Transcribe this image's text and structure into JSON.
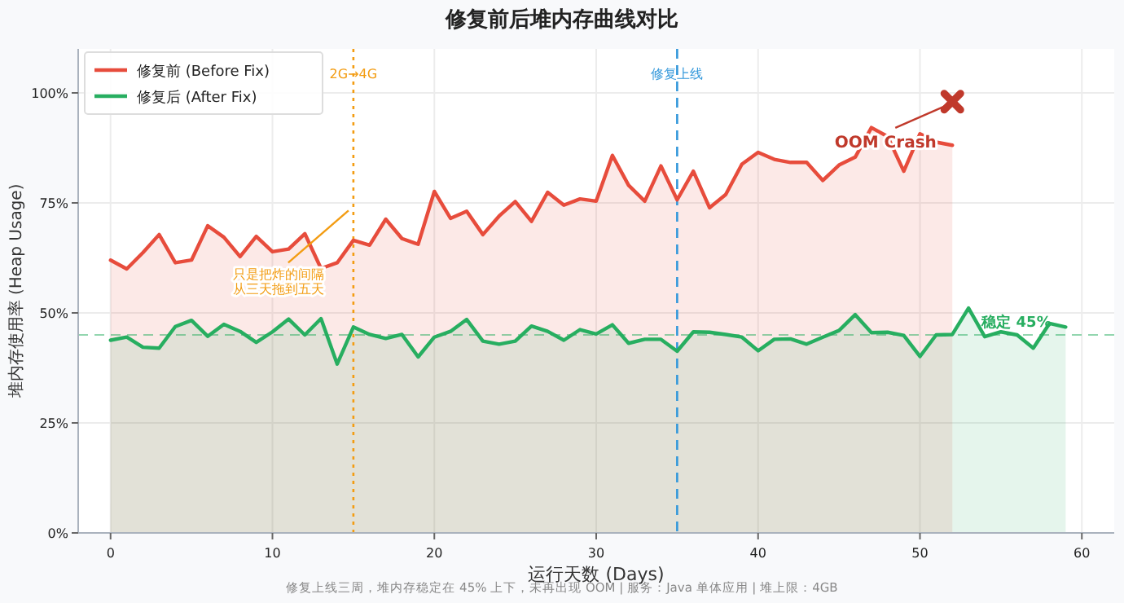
{
  "chart_data": {
    "type": "area",
    "title": "修复前后堆内存曲线对比",
    "xlabel": "运行天数 (Days)",
    "ylabel": "堆内存使用率 (Heap Usage)",
    "xlim": [
      -2,
      62
    ],
    "ylim": [
      0,
      110
    ],
    "xticks": [
      0,
      10,
      20,
      30,
      40,
      50,
      60
    ],
    "yticks": [
      {
        "value": 0,
        "label": "0%"
      },
      {
        "value": 25,
        "label": "25%"
      },
      {
        "value": 50,
        "label": "50%"
      },
      {
        "value": 75,
        "label": "75%"
      },
      {
        "value": 100,
        "label": "100%"
      }
    ],
    "grid": true,
    "legend": "top left",
    "line_style": "solid",
    "series": [
      {
        "name": "修复前 (Before Fix)",
        "color": "#e74c3c",
        "x": [
          0,
          1,
          2,
          3,
          4,
          5,
          6,
          7,
          8,
          9,
          10,
          11,
          12,
          13,
          14,
          15,
          16,
          17,
          18,
          19,
          20,
          21,
          22,
          23,
          24,
          25,
          26,
          27,
          28,
          29,
          30,
          31,
          32,
          33,
          34,
          35,
          36,
          37,
          38,
          39,
          40,
          41,
          42,
          43,
          44,
          45,
          46,
          47,
          48,
          49,
          50,
          51,
          52
        ],
        "values": [
          62,
          60,
          63.7,
          67.8,
          61.4,
          62,
          69.8,
          67.2,
          62.8,
          67.4,
          63.9,
          64.5,
          68,
          60.1,
          61.4,
          66.5,
          65.4,
          71.3,
          66.9,
          65.6,
          77.6,
          71.5,
          73.1,
          67.8,
          72,
          75.3,
          70.8,
          77.4,
          74.5,
          75.9,
          75.4,
          85.8,
          79,
          75.4,
          83.4,
          75.7,
          82.2,
          73.9,
          76.9,
          83.8,
          86.5,
          84.9,
          84.2,
          84.2,
          80.1,
          83.6,
          85.4,
          92.1,
          90.1,
          82.2,
          90.7,
          88.8,
          88.1
        ]
      },
      {
        "name": "修复后 (After Fix)",
        "color": "#27ae60",
        "x": [
          0,
          1,
          2,
          3,
          4,
          5,
          6,
          7,
          8,
          9,
          10,
          11,
          12,
          13,
          14,
          15,
          16,
          17,
          18,
          19,
          20,
          21,
          22,
          23,
          24,
          25,
          26,
          27,
          28,
          29,
          30,
          31,
          32,
          33,
          34,
          35,
          36,
          37,
          38,
          39,
          40,
          41,
          42,
          43,
          44,
          45,
          46,
          47,
          48,
          49,
          50,
          51,
          52,
          53,
          54,
          55,
          56,
          57,
          58,
          59
        ],
        "values": [
          43.8,
          44.5,
          42.2,
          42,
          46.9,
          48.3,
          44.7,
          47.4,
          45.8,
          43.3,
          45.7,
          48.6,
          45,
          48.7,
          38.4,
          46.8,
          45.1,
          44.2,
          45.1,
          40,
          44.5,
          45.8,
          48.5,
          43.6,
          42.9,
          43.6,
          47,
          45.8,
          43.8,
          46.2,
          45.2,
          47.3,
          43.1,
          44,
          44,
          41.3,
          45.7,
          45.6,
          45.1,
          44.5,
          41.4,
          44,
          44.1,
          42.9,
          44.5,
          46,
          49.6,
          45.5,
          45.6,
          44.9,
          40.1,
          45,
          45.1,
          51.1,
          44.6,
          45.7,
          45,
          42,
          47.6,
          46.8
        ]
      },
      {
        "type": "scatter",
        "marker": "cross",
        "color": "#c0392b",
        "x": [
          52
        ],
        "values": [
          98
        ]
      }
    ],
    "ref_lines": [
      {
        "axis": "x",
        "value": 15,
        "label": "2G→4G",
        "color": "#f39c12",
        "line_style": "dotted"
      },
      {
        "axis": "x",
        "value": 35,
        "label": "修复上线",
        "color": "#3498db",
        "line_style": "dashed"
      },
      {
        "axis": "y",
        "value": 45,
        "label": "稳定 45%",
        "color": "#27ae60",
        "line_style": "dashed"
      }
    ],
    "annotations": [
      {
        "text": "OOM Crash",
        "x": 52,
        "y": 98
      },
      {
        "text": "只是把炸的间隔从三天拖到五天",
        "x": 15,
        "y": 74
      },
      "修复上线三周，堆内存稳定在 45% 上下，未再出现 OOM  |  服务：Java 单体应用  |  堆上限：4GB"
    ]
  }
}
